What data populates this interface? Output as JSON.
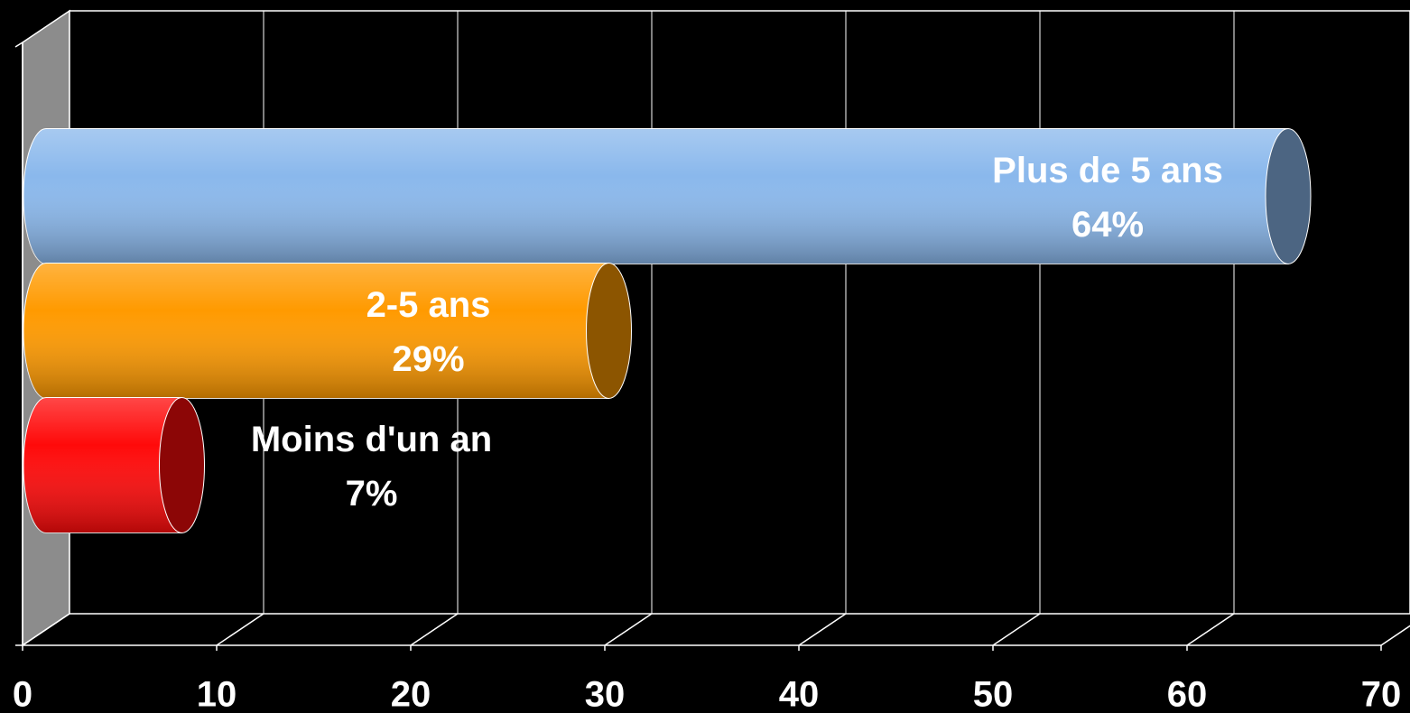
{
  "chart_data": {
    "type": "bar",
    "categories": [
      "Plus de 5 ans",
      "2-5 ans",
      "Moins d'un an"
    ],
    "values": [
      64,
      29,
      7
    ],
    "value_labels": [
      "64%",
      "29%",
      "7%"
    ],
    "colors": [
      "#8ab8ec",
      "#ff9a00",
      "#ff0a0a"
    ],
    "xlim": [
      0,
      70
    ],
    "xticks": [
      0,
      10,
      20,
      30,
      40,
      50,
      60,
      70
    ],
    "grid": true
  }
}
